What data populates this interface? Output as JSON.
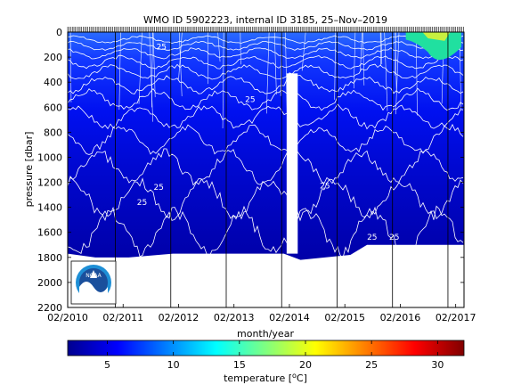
{
  "chart_data": {
    "type": "heatmap",
    "title": "WMO ID 5902223, internal ID 3185, 25–Nov–2019",
    "xlabel": "month/year",
    "ylabel": "pressure [dbar]",
    "x_ticks": [
      "02/2010",
      "02/2011",
      "02/2012",
      "02/2013",
      "02/2014",
      "02/2015",
      "02/2016",
      "02/2017"
    ],
    "y_ticks": [
      0,
      200,
      400,
      600,
      800,
      1000,
      1200,
      1400,
      1600,
      1800,
      2000,
      2200
    ],
    "ylim": [
      2200,
      0
    ],
    "y_reversed": true,
    "colorbar": {
      "label": "temperature [°C]",
      "ticks": [
        5,
        10,
        15,
        20,
        25,
        30
      ],
      "range": [
        2,
        32
      ],
      "colormap": "jet"
    },
    "contour_labels": [
      {
        "text": "25",
        "time": 2011.35,
        "pressure": 1380
      },
      {
        "text": "25",
        "time": 2011.65,
        "pressure": 1260
      },
      {
        "text": "25",
        "time": 2014.65,
        "pressure": 1250
      },
      {
        "text": "25",
        "time": 2015.5,
        "pressure": 1660
      },
      {
        "text": "25",
        "time": 2015.9,
        "pressure": 1660
      },
      {
        "text": "25",
        "time": 2011.7,
        "pressure": 140
      },
      {
        "text": "25",
        "time": 2013.3,
        "pressure": 560
      }
    ],
    "data_gaps": [
      {
        "start": 2014.05,
        "end": 2014.25,
        "pressure_from": 330,
        "pressure_to": 1770
      }
    ],
    "max_profile_depth": [
      {
        "time": 2010.1,
        "pressure": 1770
      },
      {
        "time": 2010.6,
        "pressure": 1800
      },
      {
        "time": 2011.2,
        "pressure": 1800
      },
      {
        "time": 2012.0,
        "pressure": 1770
      },
      {
        "time": 2014.0,
        "pressure": 1770
      },
      {
        "time": 2014.3,
        "pressure": 1820
      },
      {
        "time": 2015.2,
        "pressure": 1780
      },
      {
        "time": 2015.5,
        "pressure": 1700
      },
      {
        "time": 2017.25,
        "pressure": 1700
      }
    ],
    "vertical_lines_years": [
      2010.96,
      2011.96,
      2012.96,
      2013.96,
      2014.96,
      2015.96,
      2016.96
    ],
    "colors": {
      "deep": "#0000a8",
      "mid": "#0000e0",
      "upper": "#1a3cff",
      "warm_surface": "#20e0a0"
    }
  },
  "logo": {
    "text": "NOAA"
  }
}
